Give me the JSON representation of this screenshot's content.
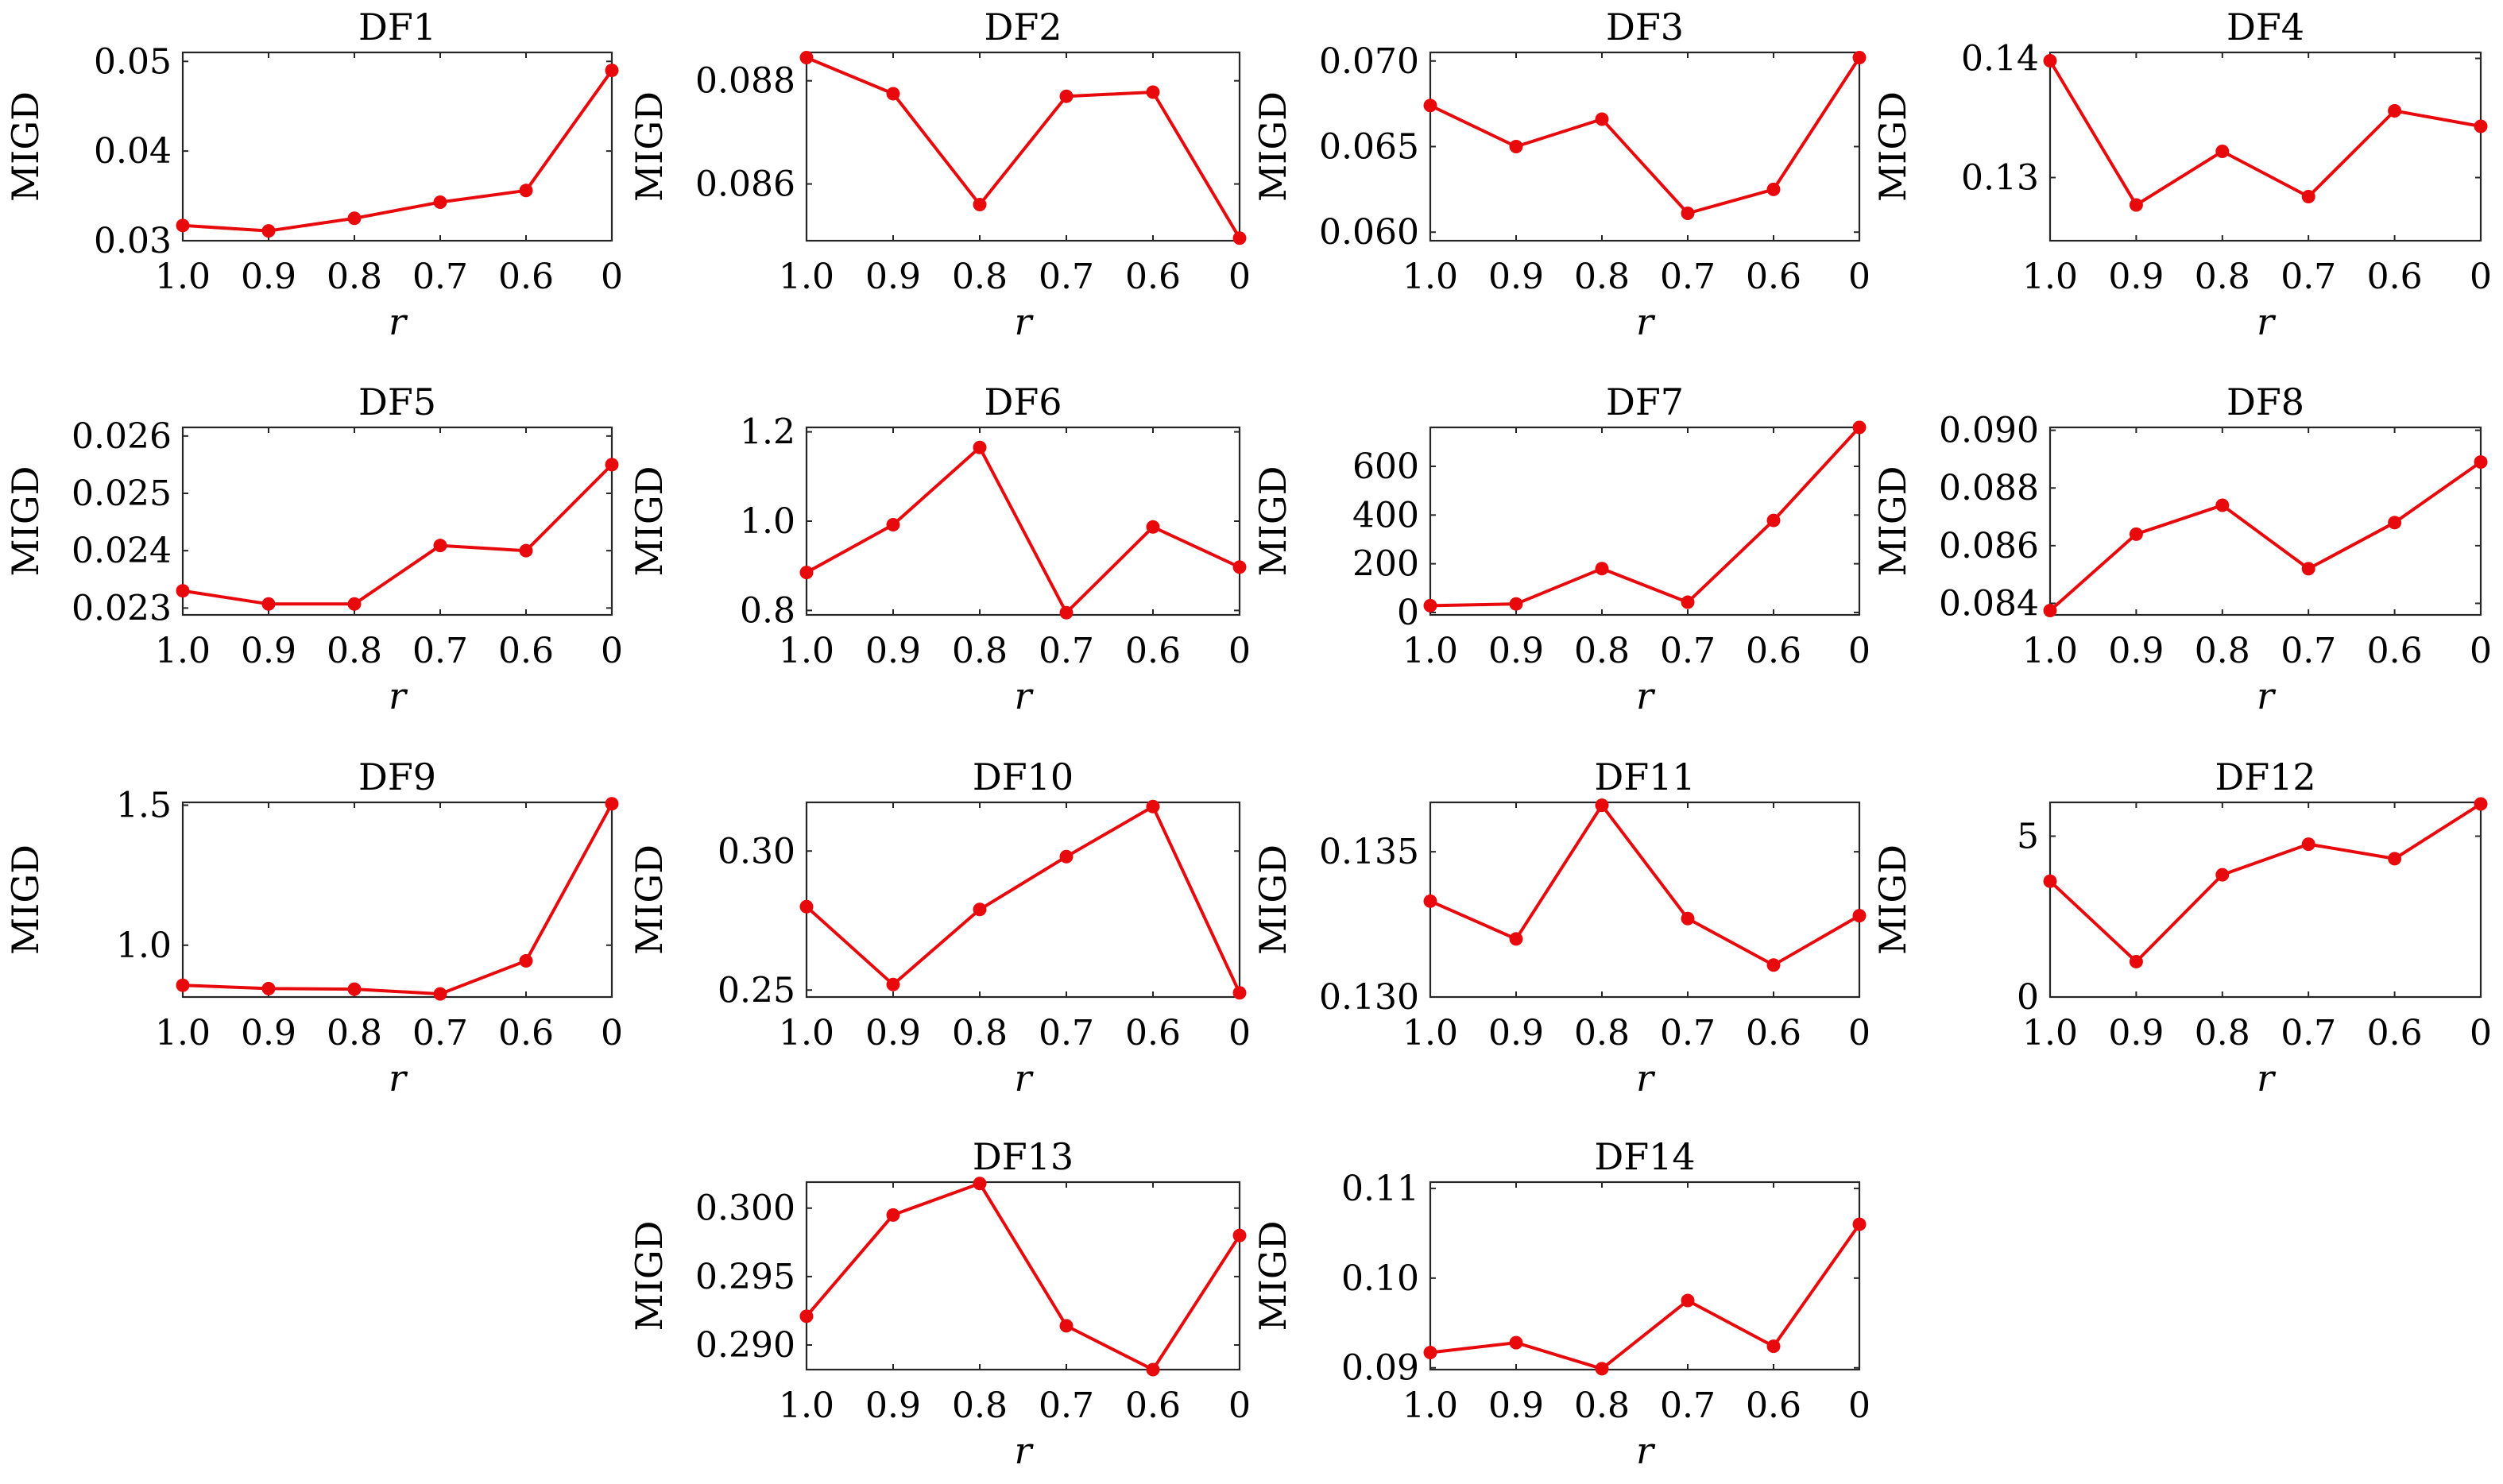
{
  "style": {
    "series_color": "#e8090c",
    "axis_color": "#262626"
  },
  "chart_data": [
    {
      "type": "line",
      "title": "DF1",
      "xlabel": "r",
      "ylabel": "MIGD",
      "categories": [
        "1.0",
        "0.9",
        "0.8",
        "0.7",
        "0.6",
        "0"
      ],
      "values": [
        0.0317,
        0.0311,
        0.0325,
        0.0343,
        0.0356,
        0.049
      ],
      "ylim": [
        0.03,
        0.051
      ],
      "yticks": [
        0.03,
        0.04,
        0.05
      ],
      "ytick_labels": [
        "0.03",
        "0.04",
        "0.05"
      ],
      "grid": false
    },
    {
      "type": "line",
      "title": "DF2",
      "xlabel": "r",
      "ylabel": "MIGD",
      "categories": [
        "1.0",
        "0.9",
        "0.8",
        "0.7",
        "0.6",
        "0"
      ],
      "values": [
        0.08845,
        0.08775,
        0.0856,
        0.0877,
        0.08778,
        0.08495
      ],
      "ylim": [
        0.0849,
        0.08855
      ],
      "yticks": [
        0.086,
        0.088
      ],
      "ytick_labels": [
        "0.086",
        "0.088"
      ],
      "grid": false
    },
    {
      "type": "line",
      "title": "DF3",
      "xlabel": "r",
      "ylabel": "MIGD",
      "categories": [
        "1.0",
        "0.9",
        "0.8",
        "0.7",
        "0.6",
        "0"
      ],
      "values": [
        0.0674,
        0.065,
        0.0666,
        0.0611,
        0.0625,
        0.0702
      ],
      "ylim": [
        0.0595,
        0.0705
      ],
      "yticks": [
        0.06,
        0.065,
        0.07
      ],
      "ytick_labels": [
        "0.060",
        "0.065",
        "0.070"
      ],
      "grid": false
    },
    {
      "type": "line",
      "title": "DF4",
      "xlabel": "r",
      "ylabel": "MIGD",
      "categories": [
        "1.0",
        "0.9",
        "0.8",
        "0.7",
        "0.6",
        "0"
      ],
      "values": [
        0.1398,
        0.1277,
        0.1322,
        0.1284,
        0.1356,
        0.1343
      ],
      "ylim": [
        0.1247,
        0.1405
      ],
      "yticks": [
        0.13,
        0.14
      ],
      "ytick_labels": [
        "0.13",
        "0.14"
      ],
      "grid": false
    },
    {
      "type": "line",
      "title": "DF5",
      "xlabel": "r",
      "ylabel": "MIGD",
      "categories": [
        "1.0",
        "0.9",
        "0.8",
        "0.7",
        "0.6",
        "0"
      ],
      "values": [
        0.0233,
        0.02307,
        0.02307,
        0.02409,
        0.024,
        0.0255
      ],
      "ylim": [
        0.02288,
        0.02615
      ],
      "yticks": [
        0.023,
        0.024,
        0.025,
        0.026
      ],
      "ytick_labels": [
        "0.023",
        "0.024",
        "0.025",
        "0.026"
      ],
      "grid": false
    },
    {
      "type": "line",
      "title": "DF6",
      "xlabel": "r",
      "ylabel": "MIGD",
      "categories": [
        "1.0",
        "0.9",
        "0.8",
        "0.7",
        "0.6",
        "0"
      ],
      "values": [
        0.885,
        0.992,
        1.165,
        0.795,
        0.987,
        0.897
      ],
      "ylim": [
        0.79,
        1.21
      ],
      "yticks": [
        0.8,
        1.0,
        1.2
      ],
      "ytick_labels": [
        "0.8",
        "1.0",
        "1.2"
      ],
      "grid": false
    },
    {
      "type": "line",
      "title": "DF7",
      "xlabel": "r",
      "ylabel": "MIGD",
      "categories": [
        "1.0",
        "0.9",
        "0.8",
        "0.7",
        "0.6",
        "0"
      ],
      "values": [
        28,
        35,
        180,
        42,
        378,
        760
      ],
      "ylim": [
        -10,
        760
      ],
      "yticks": [
        0,
        200,
        400,
        600
      ],
      "ytick_labels": [
        "0",
        "200",
        "400",
        "600"
      ],
      "grid": false
    },
    {
      "type": "line",
      "title": "DF8",
      "xlabel": "r",
      "ylabel": "MIGD",
      "categories": [
        "1.0",
        "0.9",
        "0.8",
        "0.7",
        "0.6",
        "0"
      ],
      "values": [
        0.08375,
        0.0864,
        0.0874,
        0.0852,
        0.0868,
        0.0889
      ],
      "ylim": [
        0.0836,
        0.0901
      ],
      "yticks": [
        0.084,
        0.086,
        0.088,
        0.09
      ],
      "ytick_labels": [
        "0.084",
        "0.086",
        "0.088",
        "0.090"
      ],
      "grid": false
    },
    {
      "type": "line",
      "title": "DF9",
      "xlabel": "r",
      "ylabel": "MIGD",
      "categories": [
        "1.0",
        "0.9",
        "0.8",
        "0.7",
        "0.6",
        "0"
      ],
      "values": [
        0.857,
        0.845,
        0.843,
        0.826,
        0.944,
        1.505
      ],
      "ylim": [
        0.815,
        1.51
      ],
      "yticks": [
        1.0,
        1.5
      ],
      "ytick_labels": [
        "1.0",
        "1.5"
      ],
      "grid": false
    },
    {
      "type": "line",
      "title": "DF10",
      "xlabel": "r",
      "ylabel": "MIGD",
      "categories": [
        "1.0",
        "0.9",
        "0.8",
        "0.7",
        "0.6",
        "0"
      ],
      "values": [
        0.28,
        0.252,
        0.279,
        0.298,
        0.316,
        0.249
      ],
      "ylim": [
        0.2475,
        0.3175
      ],
      "yticks": [
        0.25,
        0.3
      ],
      "ytick_labels": [
        "0.25",
        "0.30"
      ],
      "grid": false
    },
    {
      "type": "line",
      "title": "DF11",
      "xlabel": "r",
      "ylabel": "MIGD",
      "categories": [
        "1.0",
        "0.9",
        "0.8",
        "0.7",
        "0.6",
        "0"
      ],
      "values": [
        0.1333,
        0.132,
        0.1366,
        0.1327,
        0.1311,
        0.1328
      ],
      "ylim": [
        0.13,
        0.1367
      ],
      "yticks": [
        0.13,
        0.135
      ],
      "ytick_labels": [
        "0.130",
        "0.135"
      ],
      "grid": false
    },
    {
      "type": "line",
      "title": "DF12",
      "xlabel": "r",
      "ylabel": "MIGD",
      "categories": [
        "1.0",
        "0.9",
        "0.8",
        "0.7",
        "0.6",
        "0"
      ],
      "values": [
        3.6,
        1.1,
        3.8,
        4.75,
        4.3,
        6.0
      ],
      "ylim": [
        0,
        6.05
      ],
      "yticks": [
        0,
        5
      ],
      "ytick_labels": [
        "0",
        "5"
      ],
      "grid": false
    },
    {
      "type": "line",
      "title": "DF13",
      "xlabel": "r",
      "ylabel": "MIGD",
      "categories": [
        "1.0",
        "0.9",
        "0.8",
        "0.7",
        "0.6",
        "0"
      ],
      "values": [
        0.2921,
        0.2995,
        0.3018,
        0.2914,
        0.2882,
        0.298
      ],
      "ylim": [
        0.2882,
        0.3019
      ],
      "yticks": [
        0.29,
        0.295,
        0.3
      ],
      "ytick_labels": [
        "0.290",
        "0.295",
        "0.300"
      ],
      "grid": false
    },
    {
      "type": "line",
      "title": "DF14",
      "xlabel": "r",
      "ylabel": "MIGD",
      "categories": [
        "1.0",
        "0.9",
        "0.8",
        "0.7",
        "0.6",
        "0"
      ],
      "values": [
        0.0917,
        0.0928,
        0.0899,
        0.0975,
        0.0924,
        0.106
      ],
      "ylim": [
        0.0898,
        0.1107
      ],
      "yticks": [
        0.09,
        0.1,
        0.11
      ],
      "ytick_labels": [
        "0.09",
        "0.10",
        "0.11"
      ],
      "grid": false
    }
  ]
}
